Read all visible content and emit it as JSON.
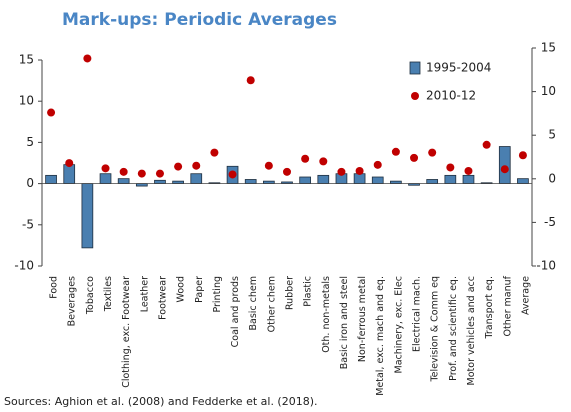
{
  "chart_data": {
    "type": "bar_scatter",
    "title": "Mark-ups: Periodic Averages",
    "source": "Sources: Aghion et al. (2008) and Fedderke et al. (2018).",
    "categories": [
      "Food",
      "Beverages",
      "Tobacco",
      "Textiles",
      "Clothing, exc. Footwear",
      "Leather",
      "Footwear",
      "Wood",
      "Paper",
      "Printing",
      "Coal and prods",
      "Basic chem",
      "Other chem",
      "Rubber",
      "Plastic",
      "Oth. non-metals",
      "Basic iron and steel",
      "Non-ferrous metal",
      "Metal, exc. mach and eq.",
      "Machinery, exc. Elec",
      "Electrical mach.",
      "Television & Comm eq",
      "Prof. and scientific eq.",
      "Motor vehicles and acc",
      "Transport eq.",
      "Other manuf",
      "Average"
    ],
    "series": [
      {
        "name": "1995-2004",
        "color": "#4a7fb0",
        "values": [
          1.0,
          2.3,
          -7.8,
          1.2,
          0.6,
          -0.3,
          0.4,
          0.3,
          1.2,
          0.1,
          2.1,
          0.5,
          0.3,
          0.2,
          0.8,
          1.0,
          1.2,
          1.2,
          0.8,
          0.3,
          -0.2,
          0.5,
          1.0,
          1.0,
          0.1,
          4.5,
          0.6
        ]
      },
      {
        "name": "2010-12",
        "color": "#c00000",
        "axis": "y2",
        "values": [
          7.6,
          1.8,
          13.8,
          1.2,
          0.8,
          0.6,
          0.6,
          1.4,
          1.5,
          3.0,
          0.5,
          11.3,
          1.5,
          0.8,
          2.3,
          2.0,
          0.8,
          0.9,
          1.6,
          3.1,
          2.4,
          3.0,
          1.3,
          0.9,
          3.9,
          1.1,
          2.7
        ]
      }
    ],
    "ylim": [
      -10,
      15
    ],
    "yticks": [
      -10,
      -5,
      0,
      5,
      10,
      15
    ],
    "y2lim": [
      -10,
      15
    ],
    "y2ticks": [
      -10,
      -5,
      0,
      5,
      10,
      15
    ],
    "legend": "upper right"
  }
}
